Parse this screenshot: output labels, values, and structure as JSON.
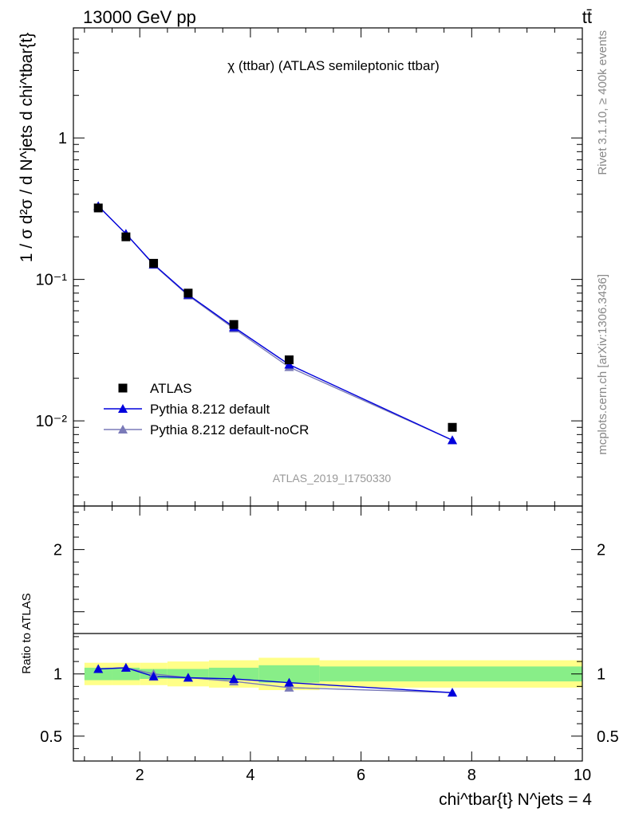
{
  "header": {
    "left": "13000 GeV pp",
    "right": "tt̄"
  },
  "side_labels": {
    "rivet": "Rivet 3.1.10, ≥ 400k events",
    "mcplots": "mcplots.cern.ch [arXiv:1306.3436]"
  },
  "chart_data": [
    {
      "type": "line",
      "panel": "main",
      "title": "χ (ttbar) (ATLAS semileptonic ttbar)",
      "ylabel": "1 / σ d²σ / d N^jets d chi^tbar{t}",
      "yscale": "log",
      "ylim": [
        0.0025,
        6
      ],
      "xlim": [
        0.8,
        10.0
      ],
      "yticks": [
        {
          "value": 1,
          "label": "1"
        },
        {
          "value": 0.1,
          "label": "10⁻¹"
        },
        {
          "value": 0.01,
          "label": "10⁻²"
        }
      ],
      "watermark": "ATLAS_2019_I1750330",
      "legend_position": "middle-left",
      "series": [
        {
          "name": "ATLAS",
          "kind": "data",
          "color": "#000000",
          "x": [
            1.25,
            1.75,
            2.25,
            2.875,
            3.7,
            4.7,
            7.65
          ],
          "y": [
            0.32,
            0.2,
            0.13,
            0.08,
            0.048,
            0.027,
            0.009
          ]
        },
        {
          "name": "Pythia 8.212 default",
          "kind": "mc",
          "color": "#0000dd",
          "x": [
            1.25,
            1.75,
            2.25,
            2.875,
            3.7,
            4.7,
            7.65
          ],
          "y": [
            0.33,
            0.21,
            0.128,
            0.078,
            0.046,
            0.025,
            0.0073
          ]
        },
        {
          "name": "Pythia 8.212 default-noCR",
          "kind": "mc",
          "color": "#7a7ab8",
          "x": [
            1.25,
            1.75,
            2.25,
            2.875,
            3.7,
            4.7,
            7.65
          ],
          "y": [
            0.33,
            0.21,
            0.127,
            0.077,
            0.045,
            0.024,
            0.0073
          ]
        }
      ]
    },
    {
      "type": "line",
      "panel": "ratio",
      "ylabel": "Ratio to ATLAS",
      "xlabel": "chi^tbar{t} N^jets = 4",
      "ylim": [
        0.3,
        2.35
      ],
      "xlim": [
        0.8,
        10.0
      ],
      "xticks": [
        2,
        4,
        6,
        8,
        10
      ],
      "yticks": [
        {
          "value": 0.5,
          "label": "0.5"
        },
        {
          "value": 1,
          "label": "1"
        },
        {
          "value": 2,
          "label": "2"
        }
      ],
      "bands": {
        "bin_edges": [
          1.0,
          1.5,
          2.0,
          2.5,
          3.25,
          4.15,
          5.25,
          10.0
        ],
        "stat_half_width": [
          0.05,
          0.05,
          0.04,
          0.04,
          0.05,
          0.07,
          0.06
        ],
        "total_half_width": [
          0.09,
          0.09,
          0.09,
          0.1,
          0.11,
          0.13,
          0.11
        ]
      },
      "series": [
        {
          "name": "Pythia 8.212 default",
          "color": "#0000dd",
          "x": [
            1.25,
            1.75,
            2.25,
            2.875,
            3.7,
            4.7,
            7.65
          ],
          "y": [
            1.04,
            1.05,
            0.98,
            0.97,
            0.96,
            0.93,
            0.85
          ],
          "err": [
            0.01,
            0.01,
            0.015,
            0.015,
            0.02,
            0.025,
            0.02
          ]
        },
        {
          "name": "Pythia 8.212 default-noCR",
          "color": "#7a7ab8",
          "x": [
            1.25,
            1.75,
            2.25,
            2.875,
            3.7,
            4.7,
            7.65
          ],
          "y": [
            1.04,
            1.05,
            1.0,
            0.97,
            0.94,
            0.89,
            0.85
          ],
          "err": [
            0.01,
            0.01,
            0.015,
            0.015,
            0.02,
            0.025,
            0.02
          ]
        }
      ]
    }
  ]
}
